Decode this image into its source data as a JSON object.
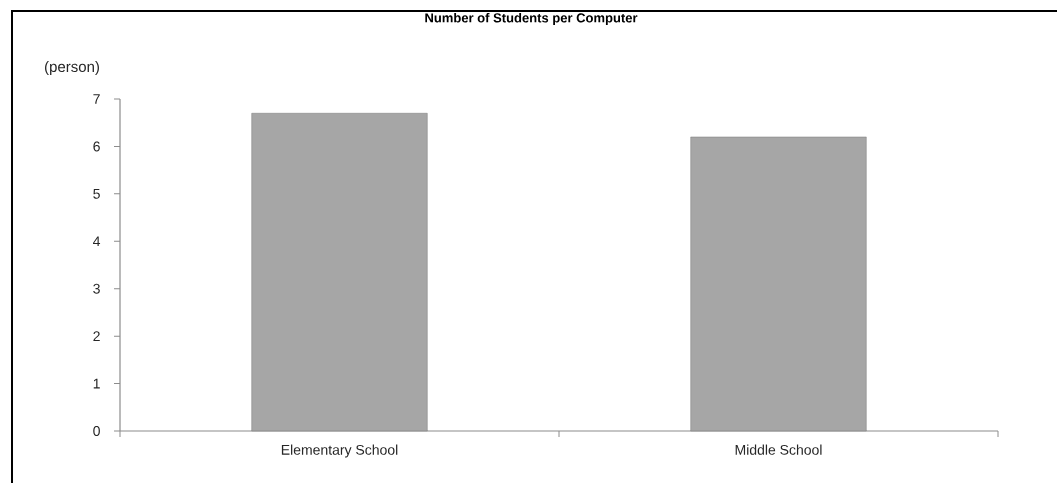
{
  "chart_data": {
    "type": "bar",
    "title": "Number of Students per Computer",
    "ylabel": "(person)",
    "categories": [
      "Elementary School",
      "Middle School"
    ],
    "values": [
      6.7,
      6.2
    ],
    "color": "#a6a6a6",
    "ylim": [
      0,
      7
    ],
    "yticks": [
      0,
      1,
      2,
      3,
      4,
      5,
      6,
      7
    ]
  }
}
